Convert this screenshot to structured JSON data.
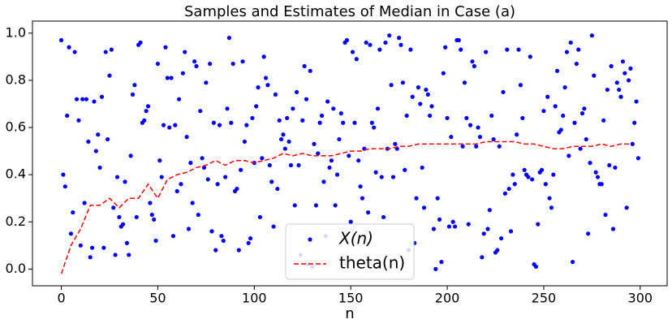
{
  "chart_data": {
    "type": "scatter",
    "title": "Samples and Estimates of Median in Case (a)",
    "xlabel": "n",
    "xlim": [
      -14.95,
      313.95
    ],
    "ylim": [
      -0.071,
      1.051
    ],
    "xticks": [
      0,
      50,
      100,
      150,
      200,
      250,
      300
    ],
    "yticks": [
      {
        "value": 0,
        "label": "0.0"
      },
      {
        "value": 0.2,
        "label": "0.2"
      },
      {
        "value": 0.4,
        "label": "0.4"
      },
      {
        "value": 0.6,
        "label": "0.6"
      },
      {
        "value": 0.8,
        "label": "0.8"
      },
      {
        "value": 1,
        "label": "1.0"
      }
    ],
    "legend": "lower center",
    "series": [
      {
        "name": "X(n)",
        "type": "scatter",
        "color": "#0000ff",
        "x": [
          0,
          1,
          2,
          3,
          4,
          5,
          6,
          7,
          8,
          9,
          10,
          11,
          12,
          13,
          14,
          15,
          16,
          17,
          18,
          19,
          20,
          21,
          22,
          23,
          24,
          25,
          26,
          27,
          28,
          29,
          30,
          31,
          32,
          33,
          34,
          35,
          36,
          37,
          38,
          39,
          40,
          41,
          42,
          43,
          44,
          45,
          46,
          47,
          48,
          49,
          50,
          51,
          52,
          53,
          54,
          55,
          56,
          57,
          58,
          59,
          60,
          61,
          62,
          63,
          64,
          65,
          66,
          67,
          68,
          69,
          70,
          71,
          72,
          73,
          74,
          75,
          76,
          77,
          78,
          79,
          80,
          81,
          82,
          83,
          84,
          85,
          86,
          87,
          88,
          89,
          90,
          91,
          92,
          93,
          94,
          95,
          96,
          97,
          98,
          99,
          100,
          101,
          102,
          103,
          104,
          105,
          106,
          107,
          108,
          109,
          110,
          111,
          112,
          113,
          114,
          115,
          116,
          117,
          118,
          119,
          120,
          121,
          122,
          123,
          124,
          125,
          126,
          127,
          128,
          129,
          130,
          131,
          132,
          133,
          134,
          135,
          136,
          137,
          138,
          139,
          140,
          141,
          142,
          143,
          144,
          145,
          146,
          147,
          148,
          149,
          150,
          151,
          152,
          153,
          154,
          155,
          156,
          157,
          158,
          159,
          160,
          161,
          162,
          163,
          164,
          165,
          166,
          167,
          168,
          169,
          170,
          171,
          172,
          173,
          174,
          175,
          176,
          177,
          178,
          179,
          180,
          181,
          182,
          183,
          184,
          185,
          186,
          187,
          188,
          189,
          190,
          191,
          192,
          193,
          194,
          195,
          196,
          197,
          198,
          199,
          200,
          201,
          202,
          203,
          204,
          205,
          206,
          207,
          208,
          209,
          210,
          211,
          212,
          213,
          214,
          215,
          216,
          217,
          218,
          219,
          220,
          221,
          222,
          223,
          224,
          225,
          226,
          227,
          228,
          229,
          230,
          231,
          232,
          233,
          234,
          235,
          236,
          237,
          238,
          239,
          240,
          241,
          242,
          243,
          244,
          245,
          246,
          247,
          248,
          249,
          250,
          251,
          252,
          253,
          254,
          255,
          256,
          257,
          258,
          259,
          260,
          261,
          262,
          263,
          264,
          265,
          266,
          267,
          268,
          269,
          270,
          271,
          272,
          273,
          274,
          275,
          276,
          277,
          278,
          279,
          280,
          281,
          282,
          283,
          284,
          285,
          286,
          287,
          288,
          289,
          290,
          291,
          292,
          293,
          294,
          295,
          296,
          297,
          298,
          299
        ],
        "values": [
          0.97,
          0.4,
          0.35,
          0.65,
          0.94,
          0.15,
          0.24,
          0.92,
          0.72,
          0.63,
          0.1,
          0.72,
          0.28,
          0.72,
          0.54,
          0.05,
          0.09,
          0.71,
          0.5,
          0.57,
          0.43,
          0.73,
          0.09,
          0.92,
          0.55,
          0.82,
          0.93,
          0.26,
          0.06,
          0.39,
          0.22,
          0.18,
          0.19,
          0.37,
          0.11,
          0.06,
          0.48,
          0.74,
          0.78,
          0.22,
          0.95,
          0.96,
          0.62,
          0.63,
          0.67,
          0.69,
          0.28,
          0.23,
          0.21,
          0.12,
          0.87,
          0.46,
          0.39,
          0.61,
          0.94,
          0.81,
          0.6,
          0.81,
          0.14,
          0.61,
          0.33,
          0.72,
          0.36,
          0.83,
          0.92,
          0.56,
          0.17,
          0.45,
          0.28,
          0.88,
          0.86,
          0.23,
          0.67,
          0.47,
          0.43,
          0.79,
          0.38,
          0.87,
          0.16,
          0.62,
          0.08,
          0.36,
          0.61,
          0.14,
          0.12,
          0.39,
          0.68,
          0.98,
          0.62,
          0.87,
          0.33,
          0.34,
          0.08,
          0.42,
          0.88,
          0.54,
          0.61,
          0.11,
          0.13,
          0.64,
          0.45,
          0.69,
          0.77,
          0.22,
          0.47,
          0.9,
          0.81,
          0.78,
          0.44,
          0.37,
          0.18,
          0.74,
          0.34,
          0.63,
          0.55,
          0.57,
          0.51,
          0.64,
          0.54,
          0.44,
          0.68,
          0.27,
          0.75,
          0.44,
          0.06,
          0.63,
          0.86,
          0.72,
          0.02,
          0.84,
          0.01,
          0.53,
          0.27,
          0.49,
          0.62,
          0.65,
          0.37,
          0.14,
          0.71,
          0.43,
          0.46,
          0.68,
          0.27,
          0.4,
          0.55,
          0.66,
          0.62,
          0.96,
          0.97,
          0.48,
          0.2,
          0.92,
          0.62,
          0.89,
          0.46,
          0.35,
          0.3,
          0.51,
          0.96,
          0.24,
          0.95,
          0.62,
          0.6,
          0.41,
          0.68,
          0.93,
          0.39,
          0.22,
          0.96,
          0.51,
          0.99,
          0.78,
          0.39,
          0.53,
          0.51,
          0.98,
          0.95,
          0.79,
          0.42,
          0.65,
          0.08,
          0.93,
          0.73,
          0.11,
          0.3,
          0.77,
          0.7,
          0.43,
          0.26,
          0.76,
          0.74,
          0.65,
          0.69,
          0.17,
          0.0,
          0.3,
          0.21,
          0.03,
          0.83,
          0.94,
          0.64,
          0.18,
          0.56,
          0.2,
          0.18,
          0.97,
          0.97,
          0.93,
          0.52,
          0.79,
          0.64,
          0.19,
          0.61,
          0.88,
          0.86,
          0.52,
          0.6,
          0.56,
          0.05,
          0.15,
          0.92,
          0.17,
          0.25,
          0.65,
          0.55,
          0.07,
          0.08,
          0.52,
          0.13,
          0.75,
          0.32,
          0.93,
          0.34,
          0.16,
          0.4,
          0.36,
          0.57,
          0.93,
          0.78,
          0.64,
          0.42,
          0.4,
          0.39,
          0.9,
          0.38,
          0.02,
          0.01,
          0.19,
          0.41,
          0.42,
          0.67,
          0.36,
          0.73,
          0.3,
          0.26,
          0.4,
          0.69,
          0.84,
          0.58,
          0.59,
          0.65,
          0.77,
          0.92,
          0.48,
          0.96,
          0.03,
          0.62,
          0.87,
          0.93,
          0.51,
          0.66,
          0.68,
          0.55,
          0.15,
          0.45,
          0.99,
          0.82,
          0.41,
          0.39,
          0.36,
          0.36,
          0.63,
          0.23,
          0.76,
          0.44,
          0.86,
          0.17,
          0.43,
          0.79,
          0.76,
          0.73,
          0.88,
          0.83,
          0.26,
          0.8,
          0.85,
          0.53,
          0.62,
          0.71,
          0.47
        ]
      },
      {
        "name": "theta(n)",
        "type": "line",
        "color": "#ff0000",
        "x": [
          0,
          5,
          10,
          15,
          20,
          25,
          30,
          35,
          40,
          45,
          50,
          55,
          60,
          65,
          70,
          75,
          80,
          85,
          90,
          95,
          100,
          105,
          110,
          115,
          120,
          125,
          130,
          135,
          140,
          145,
          150,
          155,
          160,
          165,
          170,
          175,
          180,
          185,
          190,
          195,
          200,
          205,
          210,
          215,
          220,
          225,
          230,
          235,
          240,
          245,
          250,
          255,
          260,
          265,
          270,
          275,
          280,
          285,
          290,
          295
        ],
        "values": [
          -0.02,
          0.1,
          0.17,
          0.27,
          0.27,
          0.3,
          0.26,
          0.3,
          0.3,
          0.36,
          0.3,
          0.38,
          0.4,
          0.41,
          0.43,
          0.44,
          0.46,
          0.44,
          0.46,
          0.46,
          0.45,
          0.46,
          0.47,
          0.49,
          0.48,
          0.49,
          0.48,
          0.48,
          0.48,
          0.49,
          0.5,
          0.5,
          0.51,
          0.51,
          0.51,
          0.52,
          0.52,
          0.53,
          0.53,
          0.53,
          0.53,
          0.53,
          0.53,
          0.53,
          0.54,
          0.54,
          0.54,
          0.54,
          0.53,
          0.53,
          0.52,
          0.51,
          0.51,
          0.52,
          0.52,
          0.52,
          0.53,
          0.52,
          0.53,
          0.53
        ]
      }
    ]
  }
}
